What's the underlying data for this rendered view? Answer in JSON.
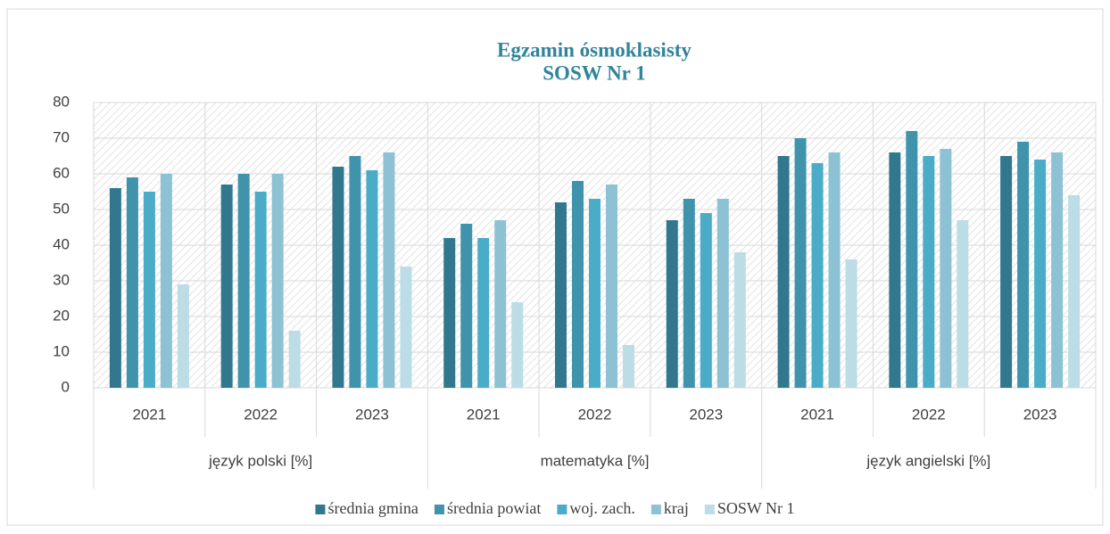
{
  "chart_data": {
    "type": "bar",
    "title": [
      "Egzamin ósmoklasisty",
      "SOSW Nr 1"
    ],
    "category_groups": [
      {
        "name": "język polski [%]",
        "categories": [
          "2021",
          "2022",
          "2023"
        ]
      },
      {
        "name": "matematyka [%]",
        "categories": [
          "2021",
          "2022",
          "2023"
        ]
      },
      {
        "name": "język angielski [%]",
        "categories": [
          "2021",
          "2022",
          "2023"
        ]
      }
    ],
    "series": [
      {
        "name": "średnia gmina",
        "color": "#31788f",
        "values": [
          56,
          57,
          62,
          42,
          52,
          47,
          65,
          66,
          65
        ]
      },
      {
        "name": "średnia powiat",
        "color": "#3f93ab",
        "values": [
          59,
          60,
          65,
          46,
          58,
          53,
          70,
          72,
          69
        ]
      },
      {
        "name": "woj. zach.",
        "color": "#4aacc6",
        "values": [
          55,
          55,
          61,
          42,
          53,
          49,
          63,
          65,
          64
        ]
      },
      {
        "name": "kraj",
        "color": "#8dc2d4",
        "values": [
          60,
          60,
          66,
          47,
          57,
          53,
          66,
          67,
          66
        ]
      },
      {
        "name": "SOSW Nr 1",
        "color": "#bcdce6",
        "values": [
          29,
          16,
          34,
          24,
          12,
          38,
          36,
          47,
          54
        ]
      }
    ],
    "ylim": [
      0,
      80
    ],
    "yticks": [
      0,
      10,
      20,
      30,
      40,
      50,
      60,
      70,
      80
    ],
    "grid": true,
    "legend": "bottom"
  }
}
